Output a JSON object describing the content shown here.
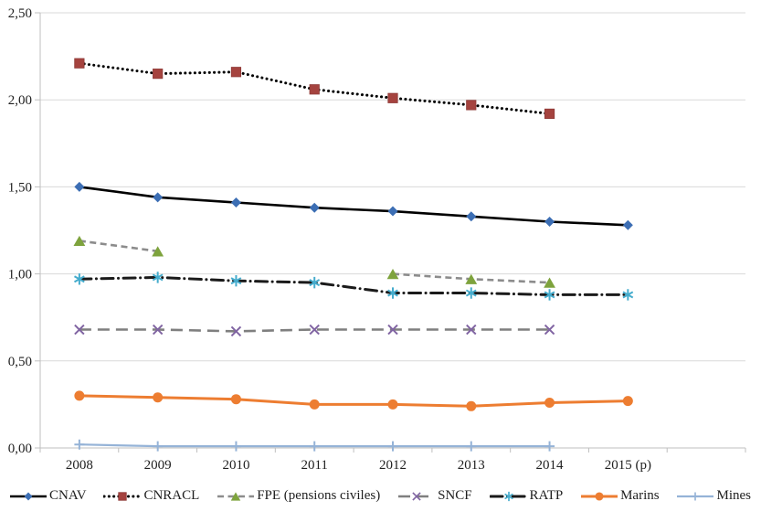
{
  "chart_data": {
    "type": "line",
    "title": "",
    "xlabel": "",
    "ylabel": "",
    "ylim": [
      0,
      2.5
    ],
    "ytick_step": 0.5,
    "ytick_labels": [
      "0,00",
      "0,50",
      "1,00",
      "1,50",
      "2,00",
      "2,50"
    ],
    "grid": "horizontal",
    "legend_position": "bottom",
    "categories": [
      "2008",
      "2009",
      "2010",
      "2011",
      "2012",
      "2013",
      "2014",
      "2015 (p)"
    ],
    "series": [
      {
        "name": "CNAV",
        "values": [
          1.5,
          1.44,
          1.41,
          1.38,
          1.36,
          1.33,
          1.3,
          1.28
        ],
        "line_color": "#000000",
        "line_style": "solid",
        "marker": "diamond",
        "marker_color": "#3C6EB4"
      },
      {
        "name": "CNRACL",
        "values": [
          2.21,
          2.15,
          2.16,
          2.06,
          2.01,
          1.97,
          1.92,
          null
        ],
        "line_color": "#000000",
        "line_style": "dotted",
        "marker": "square",
        "marker_color": "#A5433F"
      },
      {
        "name": "FPE (pensions civiles)",
        "values": [
          1.19,
          1.13,
          null,
          null,
          1.0,
          0.97,
          0.95,
          null
        ],
        "line_color": "#8C8C8C",
        "line_style": "dashed",
        "marker": "triangle",
        "marker_color": "#7EA33D"
      },
      {
        "name": "SNCF",
        "values": [
          0.68,
          0.68,
          0.67,
          0.68,
          0.68,
          0.68,
          0.68,
          null
        ],
        "line_color": "#7F7F7F",
        "line_style": "longdash",
        "marker": "x",
        "marker_color": "#8064A2"
      },
      {
        "name": "RATP",
        "values": [
          0.97,
          0.98,
          0.96,
          0.95,
          0.89,
          0.89,
          0.88,
          0.88
        ],
        "line_color": "#1a1a1a",
        "line_style": "dashdot",
        "marker": "asterisk",
        "marker_color": "#45ACCD"
      },
      {
        "name": "Marins",
        "values": [
          0.3,
          0.29,
          0.28,
          0.25,
          0.25,
          0.24,
          0.26,
          0.27
        ],
        "line_color": "#ED7D31",
        "line_style": "solid",
        "marker": "circle",
        "marker_color": "#ED7D31"
      },
      {
        "name": "Mines",
        "values": [
          0.02,
          0.01,
          0.01,
          0.01,
          0.01,
          0.01,
          0.01,
          null
        ],
        "line_color": "#95B3D7",
        "line_style": "solid",
        "marker": "plus",
        "marker_color": "#95B3D7"
      }
    ],
    "colors": {
      "gridline": "#D9D9D9",
      "axis": "#BFBFBF",
      "text": "#1f1f1f"
    }
  }
}
